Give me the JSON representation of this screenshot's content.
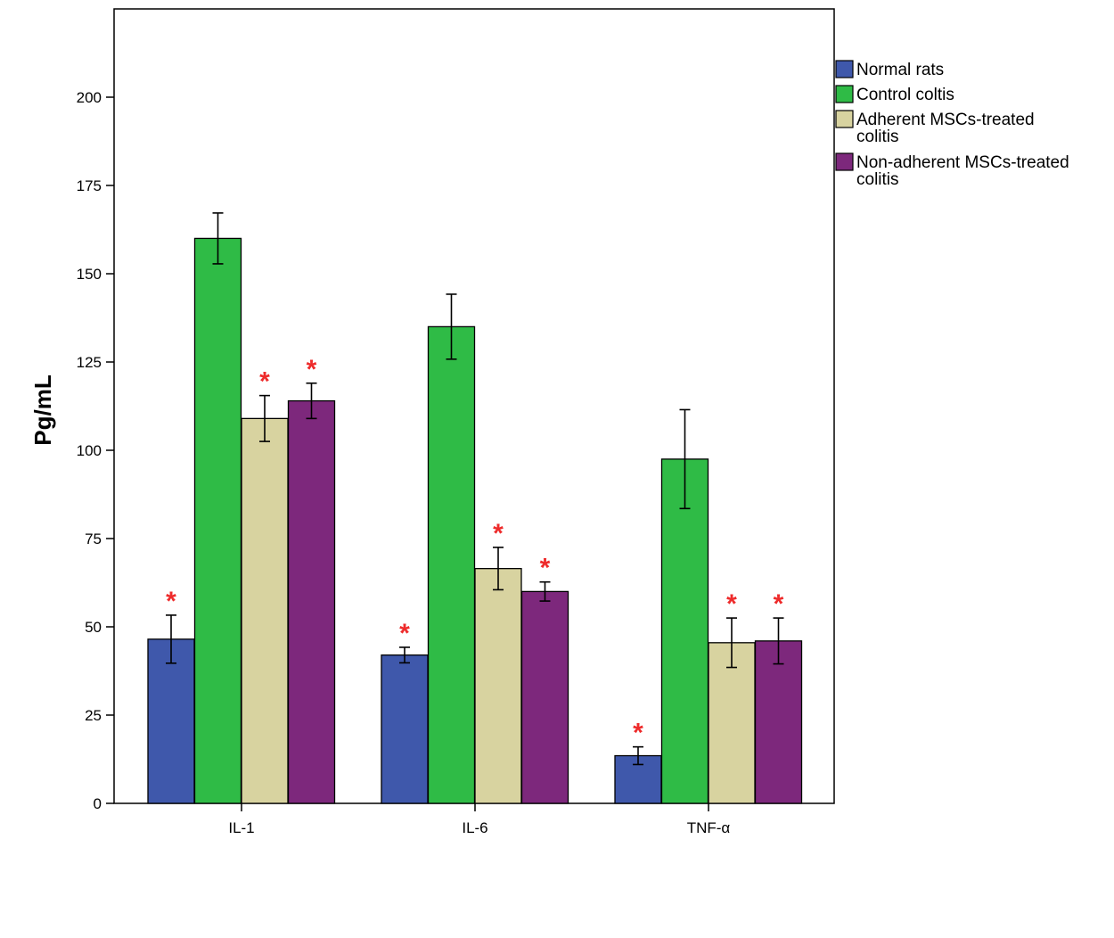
{
  "chart_data": {
    "type": "bar",
    "ylabel": "Pg/mL",
    "ylim": [
      0,
      225
    ],
    "yticks": [
      "0",
      "25",
      "50",
      "75",
      "100",
      "125",
      "150",
      "175",
      "200"
    ],
    "categories": [
      "IL-1",
      "IL-6",
      "TNF-α"
    ],
    "series": [
      {
        "name": "Normal rats",
        "color": "#3f58ab",
        "values": [
          46.5,
          42.0,
          13.5
        ],
        "errors": [
          6.8,
          2.2,
          2.5
        ],
        "significant": [
          true,
          true,
          true
        ]
      },
      {
        "name": "Control coltis",
        "color": "#2fbb46",
        "values": [
          160.0,
          135.0,
          97.5
        ],
        "errors": [
          7.2,
          9.2,
          14.0
        ],
        "significant": [
          false,
          false,
          false
        ]
      },
      {
        "name": "Adherent MSCs-treated colitis",
        "color": "#d8d3a0",
        "values": [
          109.0,
          66.5,
          45.5
        ],
        "errors": [
          6.5,
          6.0,
          7.0
        ],
        "significant": [
          true,
          true,
          true
        ]
      },
      {
        "name": "Non-adherent MSCs-treated colitis",
        "color": "#7d287c",
        "values": [
          114.0,
          60.0,
          46.0
        ],
        "errors": [
          5.0,
          2.7,
          6.5
        ],
        "significant": [
          true,
          true,
          true
        ]
      }
    ],
    "annotation_symbol": "*",
    "annotation_color": "#ee2b2b",
    "legend_position": "right, outside plot",
    "grid": false
  }
}
